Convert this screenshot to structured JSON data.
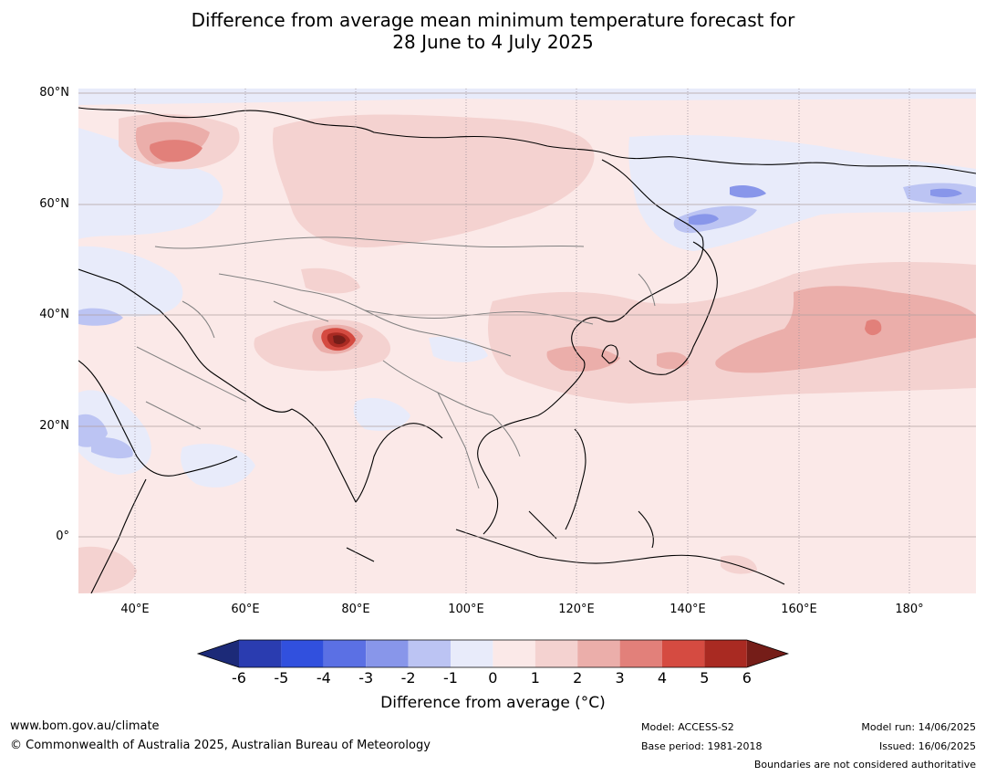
{
  "title": {
    "line1": "Difference from average mean minimum temperature forecast for",
    "line2": "28 June to 4 July 2025"
  },
  "map": {
    "lat_labels": [
      "80°N",
      "60°N",
      "40°N",
      "20°N",
      "0°"
    ],
    "lon_labels": [
      "40°E",
      "60°E",
      "80°E",
      "100°E",
      "120°E",
      "140°E",
      "160°E",
      "180°"
    ],
    "colors": {
      "ocean_border": "#000000",
      "country_border": "#808080",
      "grid": "#9a8f9a"
    }
  },
  "legend": {
    "ticks": [
      "-6",
      "-5",
      "-4",
      "-3",
      "-2",
      "-1",
      "0",
      "1",
      "2",
      "3",
      "4",
      "5",
      "6"
    ],
    "colors": [
      "#1c2a78",
      "#2a3cb0",
      "#3150de",
      "#5b70e4",
      "#8896ea",
      "#bcc4f3",
      "#e8ebfa",
      "#fbe9e8",
      "#f4d2d0",
      "#ebaeaa",
      "#e2807a",
      "#d54b41",
      "#a92a22",
      "#751d18"
    ],
    "label": "Difference from average (°C)"
  },
  "footer": {
    "url": "www.bom.gov.au/climate",
    "copyright": "© Commonwealth of Australia 2025, Australian Bureau of Meteorology",
    "model": "Model: ACCESS-S2",
    "base_period": "Base period: 1981-2018",
    "model_run": "Model run: 14/06/2025",
    "issued": "Issued: 16/06/2025",
    "disclaimer": "Boundaries are not considered authoritative"
  }
}
